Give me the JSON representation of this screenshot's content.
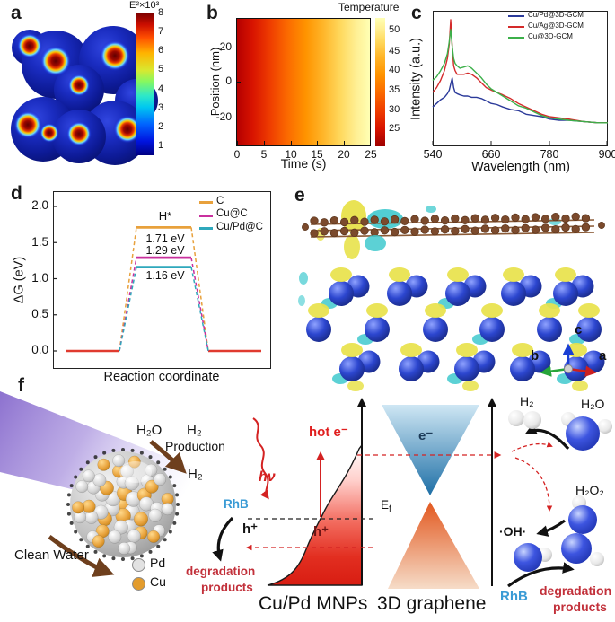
{
  "figure": {
    "panels": {
      "a": {
        "label": "a",
        "colorbar": {
          "title": "E²×10³",
          "ticks": [
            "8",
            "7",
            "6",
            "5",
            "4",
            "3",
            "2",
            "1"
          ]
        }
      },
      "b": {
        "label": "b",
        "xlabel": "Time (s)",
        "ylabel": "Position (nm)",
        "xticks": [
          "0",
          "5",
          "10",
          "15",
          "20",
          "25"
        ],
        "yticks": [
          "20",
          "0",
          "-20"
        ],
        "colorbar": {
          "title": "Temperature",
          "ticks": [
            "50",
            "45",
            "40",
            "35",
            "30",
            "25"
          ]
        }
      },
      "c": {
        "label": "c",
        "xlabel": "Wavelength (nm)",
        "ylabel": "Intensity (a.u.)",
        "xticks": [
          "540",
          "660",
          "780",
          "900"
        ],
        "legend": [
          {
            "label": "Cu/Pd@3D-GCM",
            "color": "#2b3a9a"
          },
          {
            "label": "Cu/Ag@3D-GCM",
            "color": "#d42a2a"
          },
          {
            "label": "Cu@3D-GCM",
            "color": "#3cb04a"
          }
        ]
      },
      "d": {
        "label": "d",
        "xlabel": "Reaction coordinate",
        "ylabel": "ΔG (eV)",
        "yticks": [
          "2.0",
          "1.5",
          "1.0",
          "0.5",
          "0.0"
        ],
        "legend": [
          {
            "label": "C",
            "color": "#e8a13c"
          },
          {
            "label": "Cu@C",
            "color": "#c9309e"
          },
          {
            "label": "Cu/Pd@C",
            "color": "#2fa8bc"
          }
        ],
        "annotations": {
          "intermediate": "H*",
          "barrier_c": "1.71 eV",
          "barrier_cu": "1.29 eV",
          "barrier_cupd": "1.16 eV"
        }
      },
      "e": {
        "label": "e",
        "axis_labels": {
          "a": "a",
          "b": "b",
          "c": "c"
        }
      },
      "f": {
        "label": "f",
        "left": {
          "h2o": "H₂O",
          "h2_line1": "H₂",
          "h2_line2": "Production",
          "h2_product": "H₂",
          "clean_water": "Clean Water",
          "legend": [
            {
              "label": "Pd",
              "color": "#e2e2e2"
            },
            {
              "label": "Cu",
              "color": "#e39c2d"
            }
          ]
        },
        "middle": {
          "hot_e": "hot e⁻",
          "hv": "hν",
          "rhb": "RhB",
          "h_plus": "h⁺",
          "h_plus_band": "h⁺",
          "fermi_main": "E",
          "fermi_sub": "f",
          "degradation_line1": "degradation",
          "degradation_line2": "products",
          "material_label": "Cu/Pd MNPs"
        },
        "cones": {
          "electron": "e⁻",
          "label": "3D graphene"
        },
        "right": {
          "h2": "H₂",
          "h2o": "H₂O",
          "h2o2": "H₂O₂",
          "oh": "·OH·",
          "rhb": "RhB",
          "degradation_line1": "degradation",
          "degradation_line2": "products"
        }
      }
    }
  },
  "chart_data": [
    {
      "id": "a",
      "type": "heatmap",
      "title": "E²×10³",
      "description": "Simulated electric-field intensity E² map of a Cu/Pd nanoparticle cluster with hotspots at particle junctions",
      "colormap": "jet",
      "colorbar_label": "E²×10³",
      "colorbar_ticks": [
        8,
        7,
        6,
        5,
        4,
        3,
        2,
        1
      ],
      "range": [
        1,
        8
      ],
      "value_scale": "×10³"
    },
    {
      "id": "b",
      "type": "heatmap",
      "title": "Temperature",
      "xlabel": "Time (s)",
      "ylabel": "Position (nm)",
      "xlim": [
        0,
        25
      ],
      "ylim": [
        -30,
        30
      ],
      "xticks": [
        0,
        5,
        10,
        15,
        20,
        25
      ],
      "yticks": [
        20,
        0,
        -20
      ],
      "colorbar_label": "Temperature",
      "colorbar_ticks": [
        50,
        45,
        40,
        35,
        30,
        25
      ],
      "temperature_vs_time": {
        "x": [
          0,
          5,
          10,
          15,
          20,
          25
        ],
        "values": [
          23,
          27,
          32,
          38,
          45,
          52
        ]
      },
      "note": "temperature uniform along position axis; increases with time from dark red (~23) to pale yellow (~52)"
    },
    {
      "id": "c",
      "type": "line",
      "xlabel": "Wavelength (nm)",
      "ylabel": "Intensity (a.u.)",
      "xlim": [
        540,
        900
      ],
      "xticks": [
        540,
        660,
        780,
        900
      ],
      "peak_nm": 577,
      "x": [
        540,
        548,
        556,
        564,
        570,
        574,
        577,
        580,
        583,
        586,
        590,
        596,
        604,
        612,
        620,
        630,
        640,
        650,
        660,
        672,
        684,
        700,
        716,
        732,
        748,
        764,
        780,
        800,
        820,
        850,
        880,
        900
      ],
      "series": [
        {
          "name": "Cu/Pd@3D-GCM",
          "color": "#2b3a9a",
          "values": [
            0.28,
            0.31,
            0.34,
            0.36,
            0.39,
            0.42,
            0.47,
            0.52,
            0.44,
            0.4,
            0.39,
            0.38,
            0.37,
            0.37,
            0.36,
            0.36,
            0.35,
            0.33,
            0.31,
            0.3,
            0.28,
            0.26,
            0.25,
            0.22,
            0.21,
            0.2,
            0.18,
            0.17,
            0.17,
            0.16,
            0.15,
            0.15
          ]
        },
        {
          "name": "Cu/Ag@3D-GCM",
          "color": "#d42a2a",
          "values": [
            0.4,
            0.44,
            0.5,
            0.58,
            0.68,
            0.8,
            1.0,
            0.78,
            0.62,
            0.58,
            0.55,
            0.55,
            0.55,
            0.56,
            0.55,
            0.52,
            0.48,
            0.44,
            0.42,
            0.4,
            0.38,
            0.35,
            0.31,
            0.28,
            0.25,
            0.22,
            0.2,
            0.19,
            0.18,
            0.16,
            0.15,
            0.15
          ]
        },
        {
          "name": "Cu@3D-GCM",
          "color": "#3cb04a",
          "values": [
            0.5,
            0.53,
            0.58,
            0.64,
            0.72,
            0.82,
            0.92,
            0.78,
            0.68,
            0.64,
            0.62,
            0.6,
            0.61,
            0.62,
            0.6,
            0.56,
            0.52,
            0.47,
            0.43,
            0.4,
            0.37,
            0.33,
            0.29,
            0.27,
            0.24,
            0.21,
            0.19,
            0.18,
            0.17,
            0.16,
            0.15,
            0.15
          ]
        }
      ]
    },
    {
      "id": "d",
      "type": "line",
      "xlabel": "Reaction coordinate",
      "ylabel": "ΔG (eV)",
      "ylim": [
        -0.18,
        2.25
      ],
      "yticks": [
        2.0,
        1.5,
        1.0,
        0.5,
        0.0
      ],
      "baseline_eV": 0.0,
      "baseline_color": "#e03a2f",
      "intermediate": "H*",
      "series": [
        {
          "name": "C",
          "color": "#e8a13c",
          "barrier_eV": 1.71
        },
        {
          "name": "Cu@C",
          "color": "#c9309e",
          "barrier_eV": 1.29
        },
        {
          "name": "Cu/Pd@C",
          "color": "#2fa8bc",
          "barrier_eV": 1.16
        }
      ]
    }
  ]
}
